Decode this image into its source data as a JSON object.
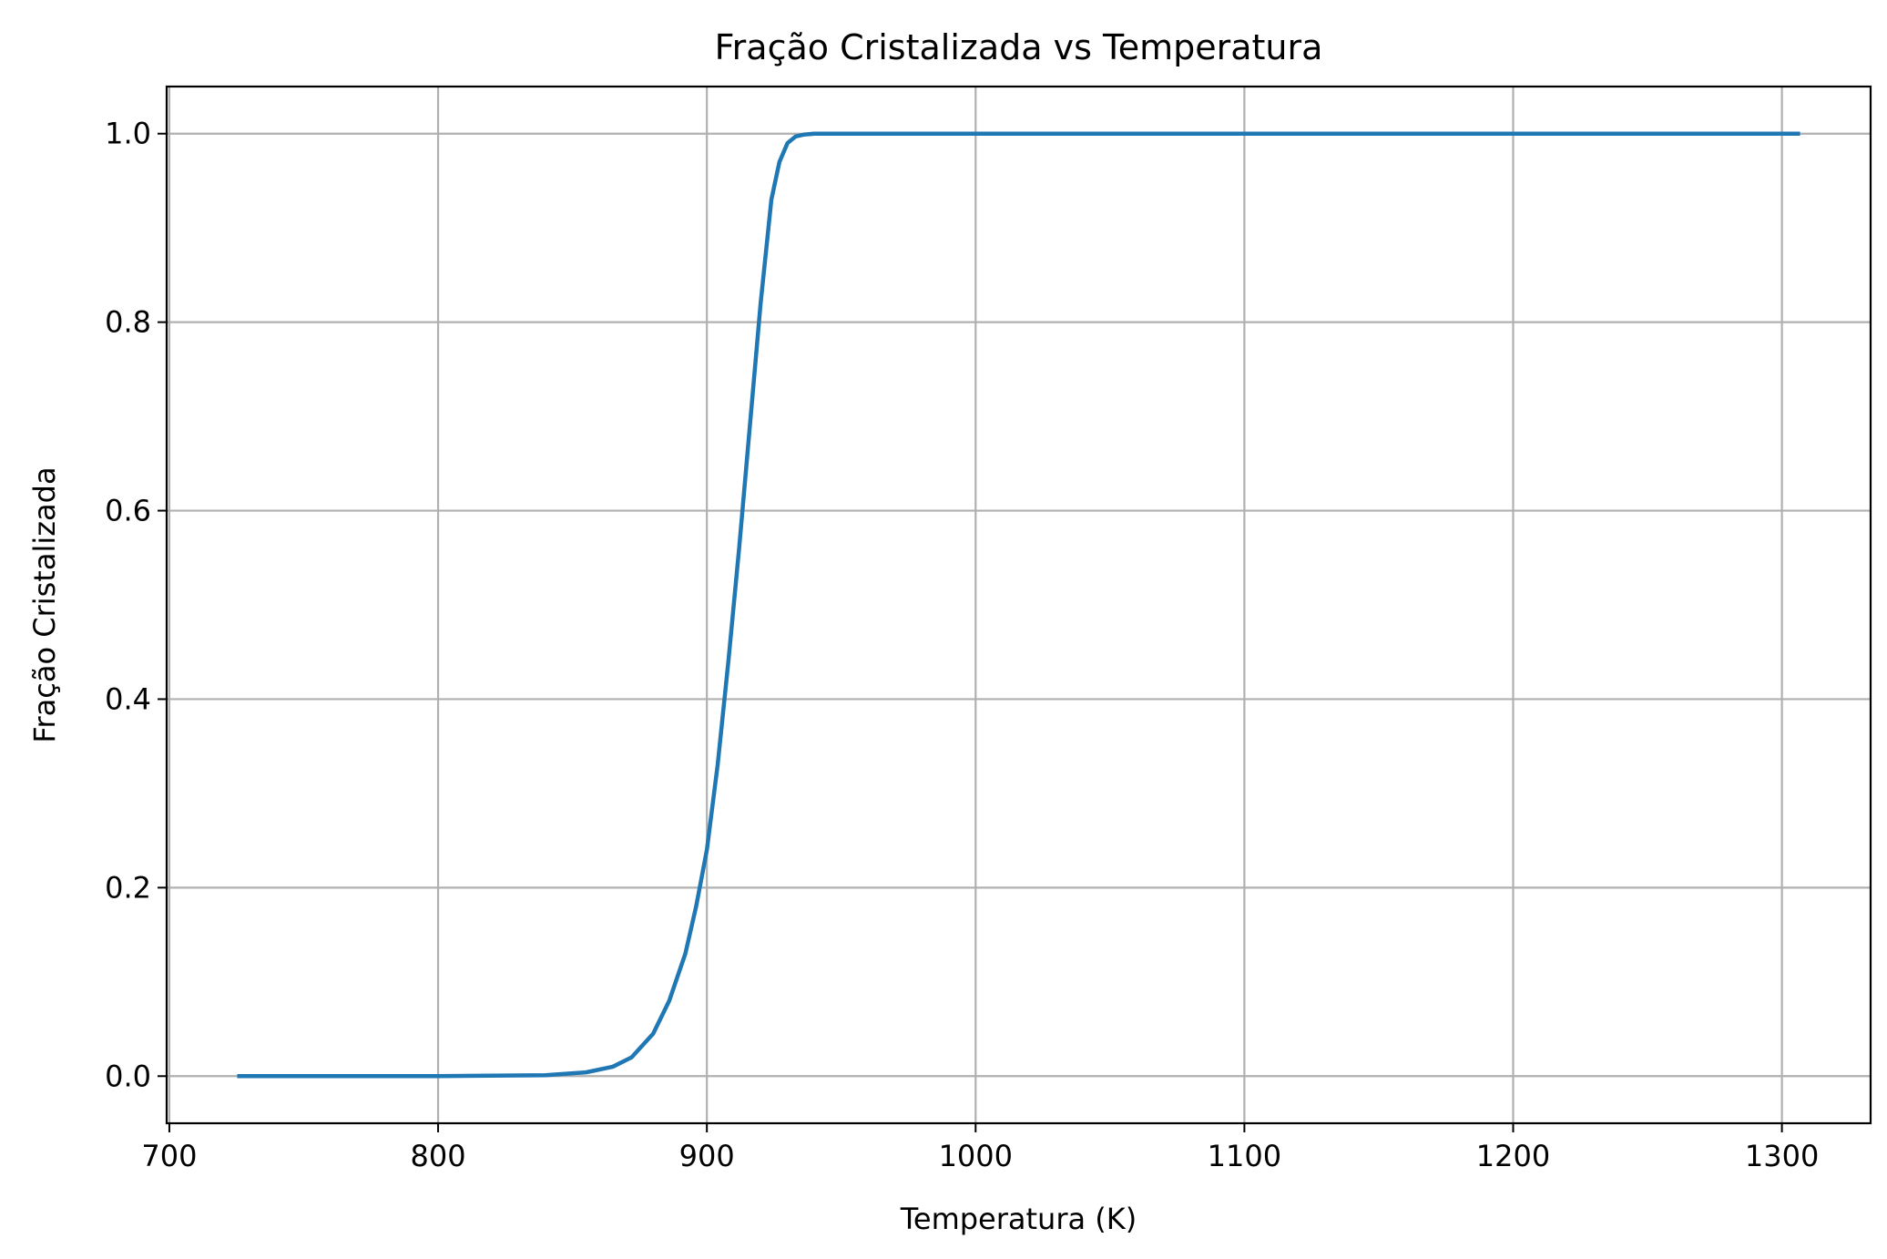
{
  "chart_data": {
    "type": "line",
    "title": "Fração Cristalizada vs Temperatura",
    "xlabel": "Temperatura (K)",
    "ylabel": "Fração Cristalizada",
    "xlim": [
      699,
      1333
    ],
    "ylim": [
      -0.05,
      1.05
    ],
    "xticks": [
      700,
      800,
      900,
      1000,
      1100,
      1200,
      1300
    ],
    "xtick_labels": [
      "700",
      "800",
      "900",
      "1000",
      "1100",
      "1200",
      "1300"
    ],
    "yticks": [
      0.0,
      0.2,
      0.4,
      0.6,
      0.8,
      1.0
    ],
    "ytick_labels": [
      "0.0",
      "0.2",
      "0.4",
      "0.6",
      "0.8",
      "1.0"
    ],
    "grid": true,
    "series": [
      {
        "color": "#1f77b4",
        "x": [
          726,
          800,
          840,
          855,
          865,
          872,
          880,
          886,
          892,
          896,
          900,
          904,
          908,
          912,
          916,
          920,
          924,
          927,
          930,
          933,
          936,
          940,
          950,
          1000,
          1100,
          1200,
          1306
        ],
        "y": [
          0.0,
          0.0,
          0.001,
          0.004,
          0.01,
          0.02,
          0.045,
          0.08,
          0.13,
          0.18,
          0.24,
          0.33,
          0.44,
          0.56,
          0.69,
          0.82,
          0.93,
          0.97,
          0.99,
          0.997,
          0.999,
          1.0,
          1.0,
          1.0,
          1.0,
          1.0,
          1.0
        ]
      }
    ]
  }
}
